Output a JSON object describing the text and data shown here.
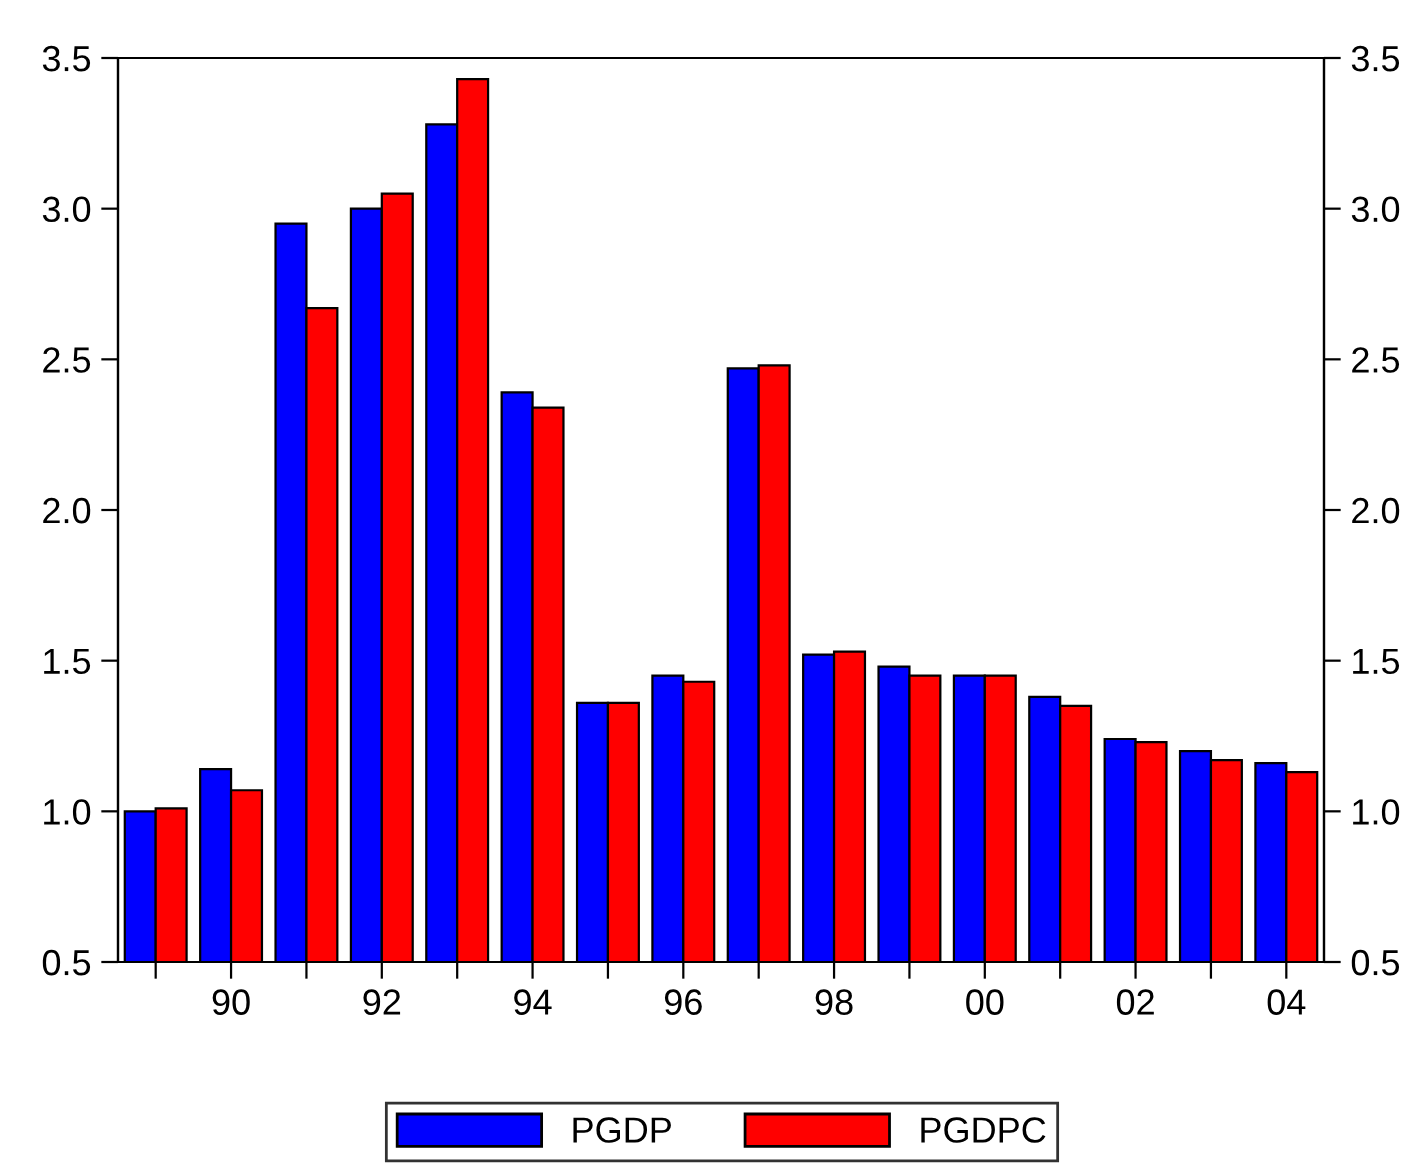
{
  "chart_data": {
    "type": "bar",
    "categories": [
      null,
      "90",
      null,
      "92",
      null,
      "94",
      null,
      "96",
      null,
      "98",
      null,
      "00",
      null,
      "02",
      null,
      "04"
    ],
    "series": [
      {
        "name": "PGDP",
        "color": "#0000ff",
        "values": [
          1.0,
          1.14,
          2.95,
          3.0,
          3.28,
          2.39,
          1.36,
          1.45,
          2.47,
          1.52,
          1.48,
          1.45,
          1.38,
          1.24,
          1.2,
          1.16
        ]
      },
      {
        "name": "PGDPC",
        "color": "#ff0000",
        "values": [
          1.01,
          1.07,
          2.67,
          3.05,
          3.43,
          2.34,
          1.36,
          1.43,
          2.48,
          1.53,
          1.45,
          1.45,
          1.35,
          1.23,
          1.17,
          1.13
        ]
      }
    ],
    "ylim": [
      0.5,
      3.5
    ],
    "yticks": [
      {
        "value": 0.5,
        "label": "0.5"
      },
      {
        "value": 1.0,
        "label": "1.0"
      },
      {
        "value": 1.5,
        "label": "1.5"
      },
      {
        "value": 2.0,
        "label": "2.0"
      },
      {
        "value": 2.5,
        "label": "2.5"
      },
      {
        "value": 3.0,
        "label": "3.0"
      },
      {
        "value": 3.5,
        "label": "3.5"
      }
    ],
    "y2lim": [
      0.5,
      3.5
    ],
    "y2ticks": [
      {
        "value": 0.5,
        "label": "0.5"
      },
      {
        "value": 1.0,
        "label": "1.0"
      },
      {
        "value": 1.5,
        "label": "1.5"
      },
      {
        "value": 2.0,
        "label": "2.0"
      },
      {
        "value": 2.5,
        "label": "2.5"
      },
      {
        "value": 3.0,
        "label": "3.0"
      },
      {
        "value": 3.5,
        "label": "3.5"
      }
    ],
    "legend": "bottom",
    "grid": false
  }
}
